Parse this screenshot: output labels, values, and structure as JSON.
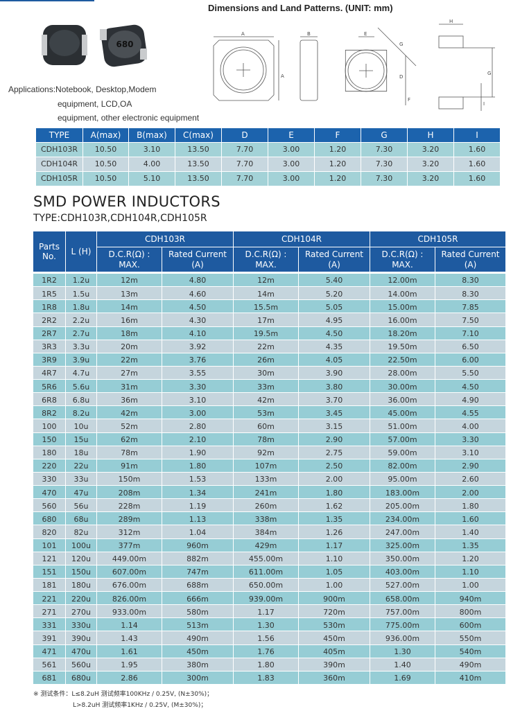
{
  "header": {
    "title": "Dimensions and Land Patterns. (UNIT: mm)"
  },
  "products": {
    "marking": "680",
    "applications": [
      "Applications:Notebook, Desktop,Modem",
      "equipment, LCD,OA",
      "equipment, other electronic equipment"
    ]
  },
  "diagram": {
    "labels": [
      "A",
      "A",
      "B",
      "E",
      "G",
      "D",
      "F",
      "H",
      "G",
      "I"
    ]
  },
  "dimensions_table": {
    "header": [
      "TYPE",
      "A(max)",
      "B(max)",
      "C(max)",
      "D",
      "E",
      "F",
      "G",
      "H",
      "I"
    ],
    "rows": [
      [
        "CDH103R",
        "10.50",
        "3.10",
        "13.50",
        "7.70",
        "3.00",
        "1.20",
        "7.30",
        "3.20",
        "1.60"
      ],
      [
        "CDH104R",
        "10.50",
        "4.00",
        "13.50",
        "7.70",
        "3.00",
        "1.20",
        "7.30",
        "3.20",
        "1.60"
      ],
      [
        "CDH105R",
        "10.50",
        "5.10",
        "13.50",
        "7.70",
        "3.00",
        "1.20",
        "7.30",
        "3.20",
        "1.60"
      ]
    ]
  },
  "section": {
    "title": "SMD POWER INDUCTORS",
    "subtitle": "TYPE:CDH103R,CDH104R,CDH105R"
  },
  "inductor_table": {
    "parts_header": [
      "Parts",
      "No."
    ],
    "l_header": "L (H)",
    "groups": [
      "CDH103R",
      "CDH104R",
      "CDH105R"
    ],
    "sub_headers": [
      [
        "D.C.R(Ω) :",
        "MAX."
      ],
      [
        "Rated Current",
        "(A)"
      ],
      [
        "D.C.R(Ω) :",
        "MAX."
      ],
      [
        "Rated Current",
        "(A)"
      ],
      [
        "D.C.R(Ω) :",
        "MAX."
      ],
      [
        "Rated Current",
        "(A)"
      ]
    ],
    "rows": [
      [
        "1R2",
        "1.2u",
        "12m",
        "4.80",
        "12m",
        "5.40",
        "12.00m",
        "8.30"
      ],
      [
        "1R5",
        "1.5u",
        "13m",
        "4.60",
        "14m",
        "5.20",
        "14.00m",
        "8.30"
      ],
      [
        "1R8",
        "1.8u",
        "14m",
        "4.50",
        "15.5m",
        "5.05",
        "15.00m",
        "7.85"
      ],
      [
        "2R2",
        "2.2u",
        "16m",
        "4.30",
        "17m",
        "4.95",
        "16.00m",
        "7.50"
      ],
      [
        "2R7",
        "2.7u",
        "18m",
        "4.10",
        "19.5m",
        "4.50",
        "18.20m",
        "7.10"
      ],
      [
        "3R3",
        "3.3u",
        "20m",
        "3.92",
        "22m",
        "4.35",
        "19.50m",
        "6.50"
      ],
      [
        "3R9",
        "3.9u",
        "22m",
        "3.76",
        "26m",
        "4.05",
        "22.50m",
        "6.00"
      ],
      [
        "4R7",
        "4.7u",
        "27m",
        "3.55",
        "30m",
        "3.90",
        "28.00m",
        "5.50"
      ],
      [
        "5R6",
        "5.6u",
        "31m",
        "3.30",
        "33m",
        "3.80",
        "30.00m",
        "4.50"
      ],
      [
        "6R8",
        "6.8u",
        "36m",
        "3.10",
        "42m",
        "3.70",
        "36.00m",
        "4.90"
      ],
      [
        "8R2",
        "8.2u",
        "42m",
        "3.00",
        "53m",
        "3.45",
        "45.00m",
        "4.55"
      ],
      [
        "100",
        "10u",
        "52m",
        "2.80",
        "60m",
        "3.15",
        "51.00m",
        "4.00"
      ],
      [
        "150",
        "15u",
        "62m",
        "2.10",
        "78m",
        "2.90",
        "57.00m",
        "3.30"
      ],
      [
        "180",
        "18u",
        "78m",
        "1.90",
        "92m",
        "2.75",
        "59.00m",
        "3.10"
      ],
      [
        "220",
        "22u",
        "91m",
        "1.80",
        "107m",
        "2.50",
        "82.00m",
        "2.90"
      ],
      [
        "330",
        "33u",
        "150m",
        "1.53",
        "133m",
        "2.00",
        "95.00m",
        "2.60"
      ],
      [
        "470",
        "47u",
        "208m",
        "1.34",
        "241m",
        "1.80",
        "183.00m",
        "2.00"
      ],
      [
        "560",
        "56u",
        "228m",
        "1.19",
        "260m",
        "1.62",
        "205.00m",
        "1.80"
      ],
      [
        "680",
        "68u",
        "289m",
        "1.13",
        "338m",
        "1.35",
        "234.00m",
        "1.60"
      ],
      [
        "820",
        "82u",
        "312m",
        "1.04",
        "384m",
        "1.26",
        "247.00m",
        "1.40"
      ],
      [
        "101",
        "100u",
        "377m",
        "960m",
        "429m",
        "1.17",
        "325.00m",
        "1.35"
      ],
      [
        "121",
        "120u",
        "449.00m",
        "882m",
        "455.00m",
        "1.10",
        "350.00m",
        "1.20"
      ],
      [
        "151",
        "150u",
        "607.00m",
        "747m",
        "611.00m",
        "1.05",
        "403.00m",
        "1.10"
      ],
      [
        "181",
        "180u",
        "676.00m",
        "688m",
        "650.00m",
        "1.00",
        "527.00m",
        "1.00"
      ],
      [
        "221",
        "220u",
        "826.00m",
        "666m",
        "939.00m",
        "900m",
        "658.00m",
        "940m"
      ],
      [
        "271",
        "270u",
        "933.00m",
        "580m",
        "1.17",
        "720m",
        "757.00m",
        "800m"
      ],
      [
        "331",
        "330u",
        "1.14",
        "513m",
        "1.30",
        "530m",
        "775.00m",
        "600m"
      ],
      [
        "391",
        "390u",
        "1.43",
        "490m",
        "1.56",
        "450m",
        "936.00m",
        "550m"
      ],
      [
        "471",
        "470u",
        "1.61",
        "450m",
        "1.76",
        "405m",
        "1.30",
        "540m"
      ],
      [
        "561",
        "560u",
        "1.95",
        "380m",
        "1.80",
        "390m",
        "1.40",
        "490m"
      ],
      [
        "681",
        "680u",
        "2.86",
        "300m",
        "1.83",
        "360m",
        "1.69",
        "410m"
      ]
    ]
  },
  "footnote": [
    "※ 测试条件：L≤8.2uH 测试频率100KHz / 0.25V, (N±30%)；",
    "L>8.2uH 测试频率1KHz / 0.25V, (M±30%)；"
  ]
}
